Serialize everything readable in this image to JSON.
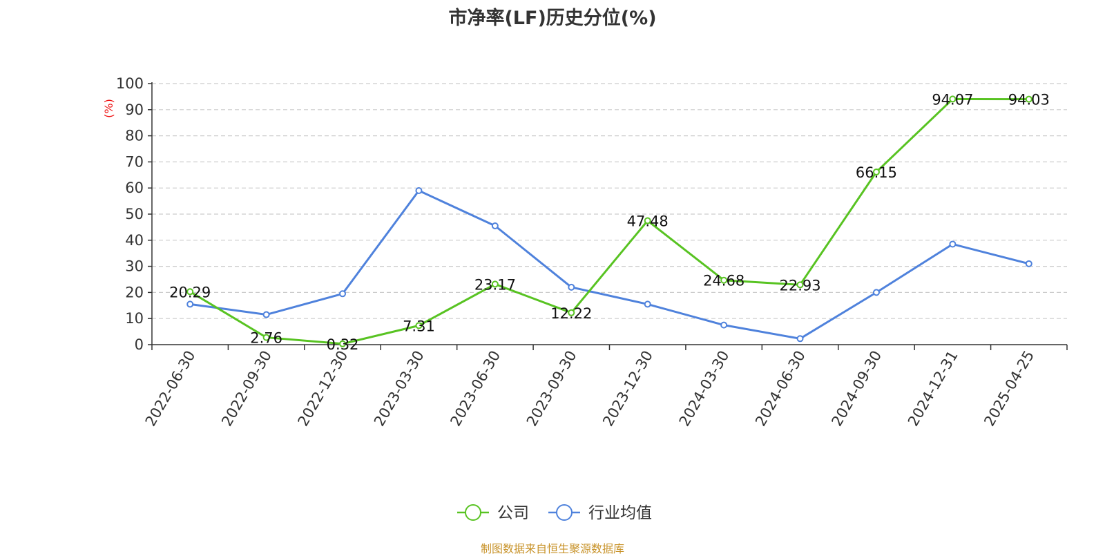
{
  "chart_data": {
    "type": "line",
    "title": "市净率(LF)历史分位(%)",
    "ylabel": "(%)",
    "xlabel": "",
    "categories": [
      "2022-06-30",
      "2022-09-30",
      "2022-12-30",
      "2023-03-30",
      "2023-06-30",
      "2023-09-30",
      "2023-12-30",
      "2024-03-30",
      "2024-06-30",
      "2024-09-30",
      "2024-12-31",
      "2025-04-25"
    ],
    "ylim": [
      0,
      100
    ],
    "yticks": [
      0,
      10,
      20,
      30,
      40,
      50,
      60,
      70,
      80,
      90,
      100
    ],
    "grid": true,
    "legend_position": "bottom",
    "series": [
      {
        "name": "公司",
        "color": "#58c322",
        "values": [
          20.29,
          2.76,
          0.32,
          7.31,
          23.17,
          12.22,
          47.48,
          24.68,
          22.93,
          66.15,
          94.07,
          94.03
        ],
        "labels": [
          "20.29",
          "2.76",
          "0.32",
          "7.31",
          "23.17",
          "12.22",
          "47.48",
          "24.68",
          "22.93",
          "66.15",
          "94.07",
          "94.03"
        ],
        "show_labels": true
      },
      {
        "name": "行业均值",
        "color": "#4f82dc",
        "values": [
          15.5,
          11.5,
          19.5,
          59,
          45.5,
          22,
          15.5,
          7.5,
          2.3,
          20,
          38.5,
          31
        ],
        "show_labels": false
      }
    ]
  },
  "source_note": "制图数据来自恒生聚源数据库"
}
